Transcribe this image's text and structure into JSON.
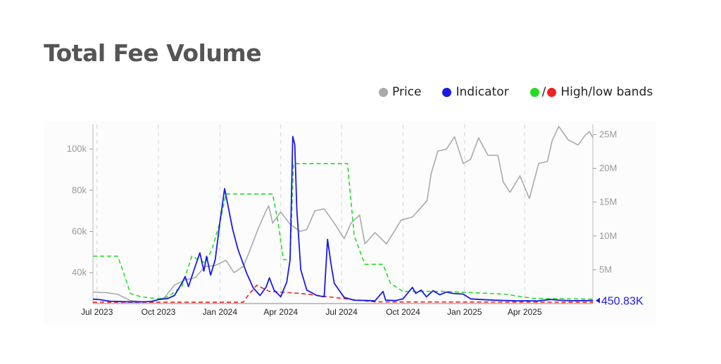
{
  "title": "Total Fee Volume",
  "legend": {
    "price_label": "Price",
    "indicator_label": "Indicator",
    "bands_slash": "/",
    "bands_label": "High/low bands",
    "price_color": "#aaaaaa",
    "indicator_color": "#1a1ae6",
    "high_color": "#22dd22",
    "low_color": "#ee2222"
  },
  "chart_data": {
    "type": "line",
    "x_ticks": [
      "Jul 2023",
      "Oct 2023",
      "Jan 2024",
      "Apr 2024",
      "Jul 2024",
      "Oct 2024",
      "Jan 2025",
      "Apr 2025"
    ],
    "y_left_ticks": [
      "40k",
      "60k",
      "80k",
      "100k"
    ],
    "y_right_ticks": [
      "5M",
      "10M",
      "15M",
      "20M",
      "25M"
    ],
    "ylim_left": [
      25000,
      112000
    ],
    "ylim_right": [
      0,
      26500000
    ],
    "xlim": [
      "2023-06-25",
      "2025-07-12"
    ],
    "last_value_label": "450.83K",
    "grid": "vertical dashed at month ticks",
    "series": [
      {
        "name": "Price",
        "axis": "left",
        "color": "#aaaaaa",
        "points": [
          [
            "2023-06-25",
            30600
          ],
          [
            "2023-07-15",
            30300
          ],
          [
            "2023-08-01",
            29500
          ],
          [
            "2023-08-20",
            26500
          ],
          [
            "2023-09-10",
            25800
          ],
          [
            "2023-09-25",
            26300
          ],
          [
            "2023-10-10",
            27800
          ],
          [
            "2023-10-25",
            34000
          ],
          [
            "2023-11-10",
            36500
          ],
          [
            "2023-11-25",
            37600
          ],
          [
            "2023-12-10",
            43000
          ],
          [
            "2023-12-25",
            43500
          ],
          [
            "2024-01-10",
            46000
          ],
          [
            "2024-01-22",
            40000
          ],
          [
            "2024-02-05",
            43000
          ],
          [
            "2024-02-15",
            51000
          ],
          [
            "2024-02-28",
            62000
          ],
          [
            "2024-03-10",
            70000
          ],
          [
            "2024-03-14",
            72500
          ],
          [
            "2024-03-20",
            64000
          ],
          [
            "2024-04-01",
            69500
          ],
          [
            "2024-04-15",
            63500
          ],
          [
            "2024-04-30",
            60000
          ],
          [
            "2024-05-10",
            61000
          ],
          [
            "2024-05-22",
            70000
          ],
          [
            "2024-06-05",
            71000
          ],
          [
            "2024-06-20",
            64000
          ],
          [
            "2024-07-05",
            56500
          ],
          [
            "2024-07-15",
            64000
          ],
          [
            "2024-07-28",
            68000
          ],
          [
            "2024-08-05",
            54000
          ],
          [
            "2024-08-20",
            59500
          ],
          [
            "2024-09-06",
            54000
          ],
          [
            "2024-09-15",
            58500
          ],
          [
            "2024-09-28",
            65500
          ],
          [
            "2024-10-15",
            67000
          ],
          [
            "2024-10-29",
            72000
          ],
          [
            "2024-11-06",
            75000
          ],
          [
            "2024-11-12",
            88000
          ],
          [
            "2024-11-22",
            99000
          ],
          [
            "2024-12-05",
            100000
          ],
          [
            "2024-12-17",
            106000
          ],
          [
            "2024-12-30",
            93000
          ],
          [
            "2025-01-10",
            95000
          ],
          [
            "2025-01-22",
            105500
          ],
          [
            "2025-02-05",
            97000
          ],
          [
            "2025-02-20",
            97000
          ],
          [
            "2025-02-28",
            84000
          ],
          [
            "2025-03-10",
            79000
          ],
          [
            "2025-03-25",
            87000
          ],
          [
            "2025-04-08",
            76000
          ],
          [
            "2025-04-22",
            93000
          ],
          [
            "2025-05-05",
            94000
          ],
          [
            "2025-05-12",
            104000
          ],
          [
            "2025-05-22",
            111000
          ],
          [
            "2025-06-05",
            104500
          ],
          [
            "2025-06-20",
            102000
          ],
          [
            "2025-07-01",
            107000
          ],
          [
            "2025-07-07",
            108500
          ],
          [
            "2025-07-12",
            105500
          ]
        ]
      },
      {
        "name": "Indicator",
        "axis": "right",
        "color": "#1a1ae6",
        "points": [
          [
            "2023-06-25",
            650000
          ],
          [
            "2023-07-05",
            580000
          ],
          [
            "2023-07-20",
            350000
          ],
          [
            "2023-08-10",
            280000
          ],
          [
            "2023-09-01",
            250000
          ],
          [
            "2023-09-20",
            300000
          ],
          [
            "2023-10-01",
            600000
          ],
          [
            "2023-10-15",
            750000
          ],
          [
            "2023-10-25",
            1200000
          ],
          [
            "2023-11-05",
            3000000
          ],
          [
            "2023-11-10",
            4000000
          ],
          [
            "2023-11-15",
            2500000
          ],
          [
            "2023-11-25",
            5500000
          ],
          [
            "2023-12-02",
            7500000
          ],
          [
            "2023-12-08",
            4800000
          ],
          [
            "2023-12-12",
            7000000
          ],
          [
            "2023-12-18",
            4200000
          ],
          [
            "2023-12-25",
            6500000
          ],
          [
            "2024-01-01",
            12000000
          ],
          [
            "2024-01-08",
            17000000
          ],
          [
            "2024-01-14",
            14000000
          ],
          [
            "2024-01-20",
            11000000
          ],
          [
            "2024-01-28",
            8000000
          ],
          [
            "2024-02-10",
            4500000
          ],
          [
            "2024-02-20",
            2300000
          ],
          [
            "2024-03-01",
            1200000
          ],
          [
            "2024-03-10",
            2400000
          ],
          [
            "2024-03-15",
            3800000
          ],
          [
            "2024-03-22",
            2000000
          ],
          [
            "2024-04-01",
            1000000
          ],
          [
            "2024-04-10",
            3200000
          ],
          [
            "2024-04-15",
            6500000
          ],
          [
            "2024-04-19",
            24700000
          ],
          [
            "2024-04-22",
            23500000
          ],
          [
            "2024-04-25",
            14000000
          ],
          [
            "2024-05-01",
            5000000
          ],
          [
            "2024-05-10",
            2000000
          ],
          [
            "2024-05-25",
            1200000
          ],
          [
            "2024-06-05",
            1000000
          ],
          [
            "2024-06-10",
            9500000
          ],
          [
            "2024-06-15",
            6000000
          ],
          [
            "2024-06-20",
            3000000
          ],
          [
            "2024-07-05",
            900000
          ],
          [
            "2024-07-20",
            500000
          ],
          [
            "2024-08-10",
            450000
          ],
          [
            "2024-08-20",
            400000
          ],
          [
            "2024-09-01",
            1800000
          ],
          [
            "2024-09-05",
            500000
          ],
          [
            "2024-09-20",
            450000
          ],
          [
            "2024-10-01",
            700000
          ],
          [
            "2024-10-10",
            1800000
          ],
          [
            "2024-10-15",
            2400000
          ],
          [
            "2024-10-20",
            1500000
          ],
          [
            "2024-10-28",
            2000000
          ],
          [
            "2024-11-05",
            1000000
          ],
          [
            "2024-11-15",
            1900000
          ],
          [
            "2024-11-25",
            1300000
          ],
          [
            "2024-12-05",
            1700000
          ],
          [
            "2024-12-15",
            1500000
          ],
          [
            "2024-12-30",
            1400000
          ],
          [
            "2025-01-10",
            700000
          ],
          [
            "2025-01-25",
            600000
          ],
          [
            "2025-02-15",
            500000
          ],
          [
            "2025-03-05",
            450000
          ],
          [
            "2025-03-20",
            400000
          ],
          [
            "2025-04-05",
            420000
          ],
          [
            "2025-04-20",
            380000
          ],
          [
            "2025-05-10",
            600000
          ],
          [
            "2025-05-25",
            480000
          ],
          [
            "2025-06-10",
            420000
          ],
          [
            "2025-07-12",
            450830
          ]
        ]
      },
      {
        "name": "High band",
        "axis": "right",
        "color": "#22dd22",
        "points": [
          [
            "2023-06-25",
            7000000
          ],
          [
            "2023-08-01",
            7000000
          ],
          [
            "2023-08-10",
            4500000
          ],
          [
            "2023-08-20",
            1500000
          ],
          [
            "2023-09-05",
            1000000
          ],
          [
            "2023-10-01",
            700000
          ],
          [
            "2023-10-15",
            1000000
          ],
          [
            "2023-11-05",
            2500000
          ],
          [
            "2023-11-20",
            7000000
          ],
          [
            "2023-12-10",
            6000000
          ],
          [
            "2023-12-20",
            8000000
          ],
          [
            "2024-01-01",
            12000000
          ],
          [
            "2024-01-10",
            16200000
          ],
          [
            "2024-03-20",
            16200000
          ],
          [
            "2024-03-28",
            12000000
          ],
          [
            "2024-04-05",
            6500000
          ],
          [
            "2024-04-15",
            6500000
          ],
          [
            "2024-04-20",
            20700000
          ],
          [
            "2024-07-10",
            20700000
          ],
          [
            "2024-07-20",
            10000000
          ],
          [
            "2024-08-05",
            5800000
          ],
          [
            "2024-09-01",
            5800000
          ],
          [
            "2024-09-12",
            3000000
          ],
          [
            "2024-10-01",
            1800000
          ],
          [
            "2024-12-01",
            1800000
          ],
          [
            "2025-03-01",
            1400000
          ],
          [
            "2025-04-15",
            750000
          ],
          [
            "2025-07-12",
            650000
          ]
        ]
      },
      {
        "name": "Low band",
        "axis": "right",
        "color": "#ee2222",
        "points": [
          [
            "2023-06-25",
            200000
          ],
          [
            "2024-01-10",
            200000
          ],
          [
            "2024-02-05",
            200000
          ],
          [
            "2024-02-12",
            1200000
          ],
          [
            "2024-02-25",
            2700000
          ],
          [
            "2024-03-15",
            1800000
          ],
          [
            "2024-05-01",
            1500000
          ],
          [
            "2024-07-15",
            600000
          ],
          [
            "2024-08-20",
            250000
          ],
          [
            "2025-07-12",
            200000
          ]
        ]
      }
    ]
  }
}
